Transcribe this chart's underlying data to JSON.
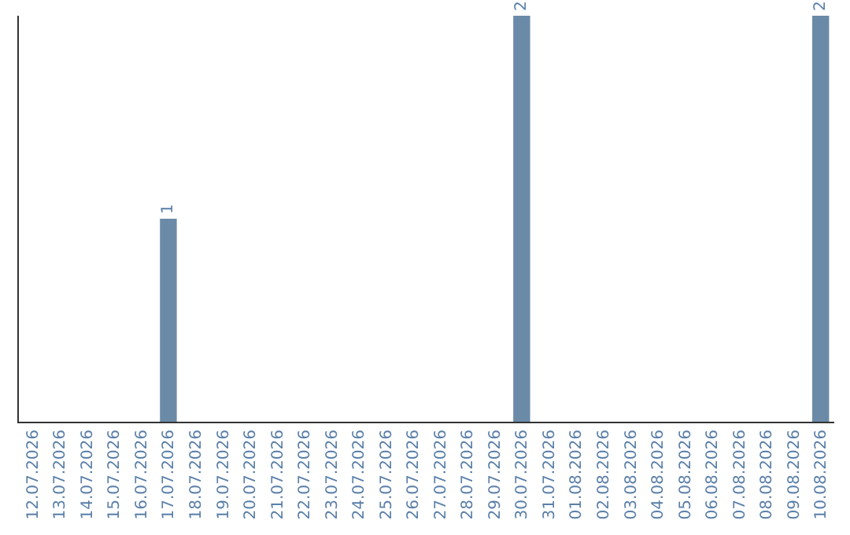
{
  "chart_data": {
    "type": "bar",
    "categories": [
      "12.07.2026",
      "13.07.2026",
      "14.07.2026",
      "15.07.2026",
      "16.07.2026",
      "17.07.2026",
      "18.07.2026",
      "19.07.2026",
      "20.07.2026",
      "21.07.2026",
      "22.07.2026",
      "23.07.2026",
      "24.07.2026",
      "25.07.2026",
      "26.07.2026",
      "27.07.2026",
      "28.07.2026",
      "29.07.2026",
      "30.07.2026",
      "31.07.2026",
      "01.08.2026",
      "02.08.2026",
      "03.08.2026",
      "04.08.2026",
      "05.08.2026",
      "06.08.2026",
      "07.08.2026",
      "08.08.2026",
      "09.08.2026",
      "10.08.2026"
    ],
    "values": [
      null,
      null,
      null,
      null,
      null,
      1,
      null,
      null,
      null,
      null,
      null,
      null,
      null,
      null,
      null,
      null,
      null,
      null,
      2,
      null,
      null,
      null,
      null,
      null,
      null,
      null,
      null,
      null,
      null,
      2
    ],
    "color": "#6b8aa8",
    "data_labels": true
  }
}
